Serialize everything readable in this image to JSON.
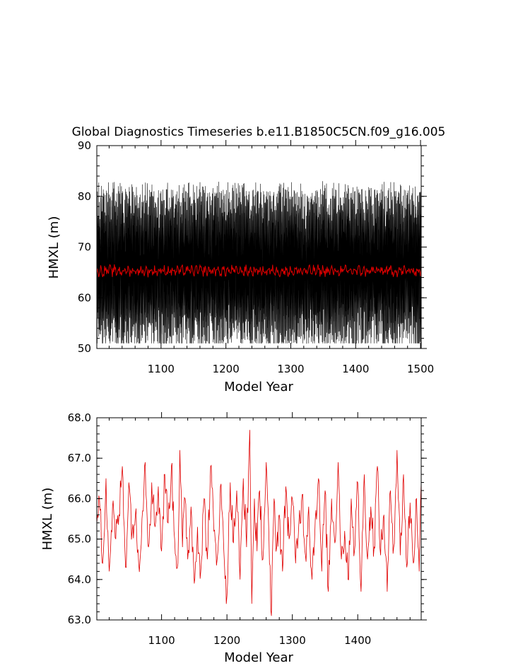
{
  "title": "Global Diagnostics Timeseries b.e11.B1850C5CN.f09_g16.005",
  "colors": {
    "monthly": "#000000",
    "annual": "#e00000",
    "axes": "#000000"
  },
  "chart_data": [
    {
      "type": "line",
      "xlabel": "Model Year",
      "ylabel": "HMXL (m)",
      "xlim": [
        1001,
        1501
      ],
      "ylim": [
        50,
        90
      ],
      "xticks": [
        1100,
        1200,
        1300,
        1400,
        1500
      ],
      "yticks": [
        50,
        60,
        70,
        80,
        90
      ],
      "ytick_labels": [
        "50",
        "60",
        "70",
        "80",
        "90"
      ],
      "series": [
        {
          "role": "monthly",
          "color": "#000000",
          "description_of_shape": "monthly values oscillating between about 52 and 83",
          "x_start": 1001,
          "x_end": 1501,
          "min": 51,
          "max": 85
        },
        {
          "role": "annual",
          "color": "#e00000",
          "x_start": 1001,
          "x_end": 1501,
          "mean": 65.3
        }
      ]
    },
    {
      "type": "line",
      "xlabel": "Model Year",
      "ylabel": "HMXL (m)",
      "xlim": [
        1001,
        1497
      ],
      "ylim": [
        63.0,
        68.0
      ],
      "xticks": [
        1100,
        1200,
        1300,
        1400
      ],
      "yticks": [
        63.0,
        64.0,
        65.0,
        66.0,
        67.0,
        68.0
      ],
      "ytick_labels": [
        "63.0",
        "64.0",
        "65.0",
        "66.0",
        "67.0",
        "68.0"
      ],
      "series": [
        {
          "role": "annual",
          "color": "#e00000",
          "x_start": 1001,
          "points": [
            [
              1001,
              65.4
            ],
            [
              1005,
              66.0
            ],
            [
              1010,
              64.4
            ],
            [
              1015,
              66.5
            ],
            [
              1020,
              64.2
            ],
            [
              1025,
              65.8
            ],
            [
              1030,
              65.0
            ],
            [
              1035,
              65.6
            ],
            [
              1040,
              66.8
            ],
            [
              1045,
              64.3
            ],
            [
              1050,
              66.4
            ],
            [
              1055,
              65.2
            ],
            [
              1060,
              65.6
            ],
            [
              1065,
              64.4
            ],
            [
              1070,
              65.5
            ],
            [
              1075,
              66.9
            ],
            [
              1080,
              64.8
            ],
            [
              1085,
              66.4
            ],
            [
              1090,
              65.3
            ],
            [
              1095,
              66.3
            ],
            [
              1100,
              64.7
            ],
            [
              1105,
              66.6
            ],
            [
              1110,
              65.4
            ],
            [
              1115,
              66.8
            ],
            [
              1120,
              65.0
            ],
            [
              1125,
              64.4
            ],
            [
              1128,
              67.2
            ],
            [
              1132,
              64.8
            ],
            [
              1136,
              66.0
            ],
            [
              1140,
              64.5
            ],
            [
              1145,
              65.8
            ],
            [
              1150,
              63.9
            ],
            [
              1155,
              65.3
            ],
            [
              1160,
              64.2
            ],
            [
              1165,
              66.0
            ],
            [
              1170,
              64.5
            ],
            [
              1175,
              66.8
            ],
            [
              1180,
              65.2
            ],
            [
              1185,
              64.5
            ],
            [
              1190,
              66.3
            ],
            [
              1195,
              64.8
            ],
            [
              1200,
              63.6
            ],
            [
              1205,
              66.4
            ],
            [
              1210,
              64.9
            ],
            [
              1215,
              66.2
            ],
            [
              1220,
              64.0
            ],
            [
              1225,
              66.5
            ],
            [
              1230,
              64.8
            ],
            [
              1235,
              67.7
            ],
            [
              1238,
              63.4
            ],
            [
              1242,
              66.0
            ],
            [
              1246,
              64.7
            ],
            [
              1250,
              66.2
            ],
            [
              1255,
              64.5
            ],
            [
              1260,
              66.9
            ],
            [
              1265,
              64.4
            ],
            [
              1268,
              63.1
            ],
            [
              1272,
              66.0
            ],
            [
              1276,
              64.8
            ],
            [
              1280,
              65.6
            ],
            [
              1285,
              64.2
            ],
            [
              1290,
              66.3
            ],
            [
              1295,
              65.0
            ],
            [
              1300,
              66.0
            ],
            [
              1305,
              64.4
            ],
            [
              1310,
              65.4
            ],
            [
              1315,
              66.1
            ],
            [
              1320,
              64.6
            ],
            [
              1325,
              65.8
            ],
            [
              1330,
              64.0
            ],
            [
              1335,
              65.5
            ],
            [
              1340,
              66.5
            ],
            [
              1345,
              64.2
            ],
            [
              1350,
              66.2
            ],
            [
              1355,
              63.7
            ],
            [
              1360,
              66.0
            ],
            [
              1365,
              64.9
            ],
            [
              1370,
              66.9
            ],
            [
              1375,
              64.5
            ],
            [
              1380,
              65.2
            ],
            [
              1385,
              64.0
            ],
            [
              1390,
              66.0
            ],
            [
              1395,
              64.7
            ],
            [
              1400,
              66.4
            ],
            [
              1405,
              63.7
            ],
            [
              1410,
              66.6
            ],
            [
              1415,
              64.5
            ],
            [
              1420,
              65.8
            ],
            [
              1425,
              64.8
            ],
            [
              1430,
              66.8
            ],
            [
              1435,
              64.6
            ],
            [
              1440,
              65.6
            ],
            [
              1445,
              63.7
            ],
            [
              1450,
              66.2
            ],
            [
              1455,
              64.8
            ],
            [
              1460,
              67.2
            ],
            [
              1465,
              64.6
            ],
            [
              1470,
              66.6
            ],
            [
              1475,
              64.3
            ],
            [
              1480,
              65.9
            ],
            [
              1485,
              64.4
            ],
            [
              1490,
              66.0
            ],
            [
              1494,
              64.2
            ],
            [
              1497,
              66.4
            ]
          ]
        }
      ]
    }
  ]
}
